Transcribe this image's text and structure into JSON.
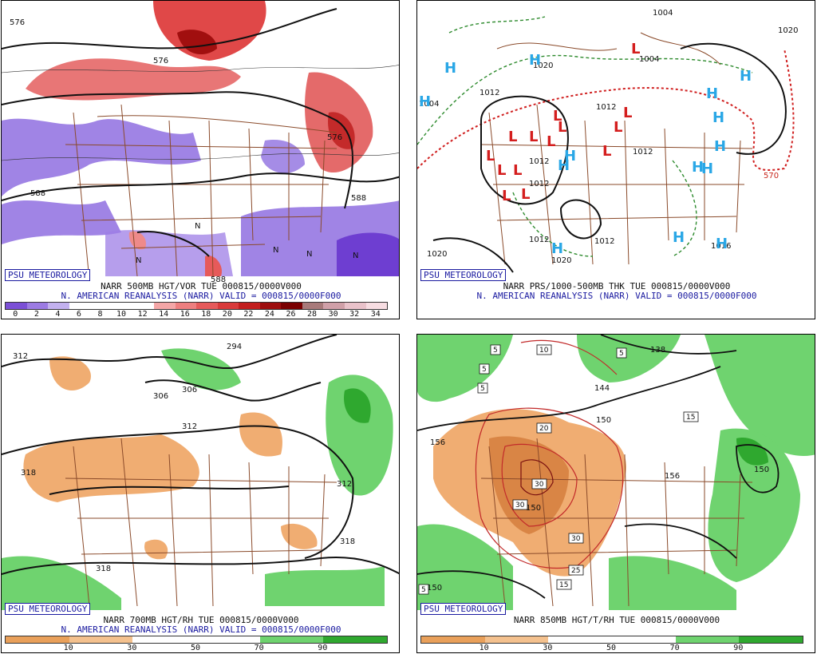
{
  "panels": [
    {
      "badge": "PSU METEOROLOGY",
      "title": "NARR 500MB HGT/VOR TUE 000815/0000V000",
      "subtitle": "N. AMERICAN REANALYSIS (NARR) VALID = 000815/0000F000",
      "scale_ticks": [
        "0",
        "2",
        "4",
        "6",
        "8",
        "10",
        "12",
        "14",
        "16",
        "18",
        "20",
        "22",
        "24",
        "26",
        "28",
        "30",
        "32",
        "34"
      ],
      "scale_colors": [
        "#7b4fd6",
        "#9c7be3",
        "#c3b1ef",
        "#ffffff",
        "#ffffff",
        "#ffffff",
        "#ffffff",
        "#f4a6a6",
        "#ee7f7f",
        "#e65a5a",
        "#d93a3a",
        "#c21e1e",
        "#9e0e0e",
        "#7a0000",
        "#a87a7a",
        "#d0a0a8",
        "#e9c2ca",
        "#f7dde2"
      ],
      "labels": [
        "576",
        "588",
        "588",
        "576",
        "576",
        "588",
        "N",
        "N",
        "N",
        "N",
        "N"
      ]
    },
    {
      "badge": "PSU METEOROLOGY",
      "title": "NARR PRS/1000-500MB THK TUE 000815/0000V000",
      "subtitle": "N. AMERICAN REANALYSIS (NARR) VALID = 000815/0000F000",
      "labels": [
        "1004",
        "1020",
        "1004",
        "1020",
        "1012",
        "1012",
        "1012",
        "1012",
        "1012",
        "1012",
        "1020",
        "1012",
        "1020",
        "570",
        "1016",
        "1004"
      ],
      "highs": [
        "H",
        "H",
        "H",
        "H",
        "H",
        "H",
        "H",
        "H",
        "H",
        "H",
        "H",
        "H",
        "H",
        "H"
      ],
      "lows": [
        "L",
        "L",
        "L",
        "L",
        "L",
        "L",
        "L",
        "L",
        "L",
        "L",
        "L",
        "L",
        "L",
        "L"
      ]
    },
    {
      "badge": "PSU METEOROLOGY",
      "title": "NARR 700MB HGT/RH TUE 000815/0000V000",
      "subtitle": "N. AMERICAN REANALYSIS (NARR) VALID = 000815/0000F000",
      "scale_ticks": [
        "10",
        "30",
        "50",
        "70",
        "90"
      ],
      "scale_colors": [
        "#e9a05a",
        "#f4c18e",
        "#ffffff",
        "#ffffff",
        "#6fd36f",
        "#2fa82f"
      ],
      "labels": [
        "312",
        "306",
        "306",
        "294",
        "312",
        "318",
        "312",
        "318",
        "318"
      ]
    },
    {
      "badge": "PSU METEOROLOGY",
      "title": "NARR 850MB HGT/T/RH TUE 000815/0000V000",
      "subtitle": "",
      "scale_ticks": [
        "10",
        "30",
        "50",
        "70",
        "90"
      ],
      "scale_colors": [
        "#e9a05a",
        "#f4c18e",
        "#ffffff",
        "#ffffff",
        "#6fd36f",
        "#2fa82f"
      ],
      "labels": [
        "138",
        "144",
        "150",
        "156",
        "156",
        "150",
        "150",
        "150"
      ],
      "boxed": [
        "5",
        "10",
        "5",
        "5",
        "5",
        "15",
        "20",
        "30",
        "30",
        "30",
        "25",
        "15",
        "5"
      ]
    }
  ]
}
